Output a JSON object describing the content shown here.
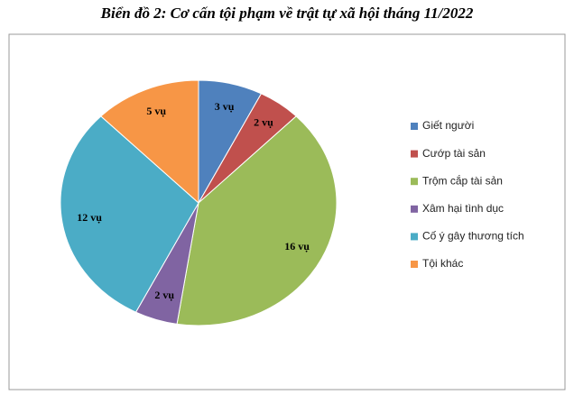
{
  "chart_data": {
    "type": "pie",
    "title": "Biển đồ 2: Cơ cấn tội phạm về trật tự xã hội tháng 11/2022",
    "categories": [
      "Giết người",
      "Cướp tài sản",
      "Trộm cắp tài sản",
      "Xâm hại tình dục",
      "Cố ý gây thương tích",
      "Tội khác"
    ],
    "values": [
      3,
      2,
      16,
      2,
      12,
      5
    ],
    "value_labels": [
      "3 vụ",
      "2 vụ",
      "16 vụ",
      "2 vụ",
      "12 vụ",
      "5 vụ"
    ],
    "colors": [
      "#4f81bd",
      "#c0504d",
      "#9bbb59",
      "#8064a2",
      "#4bacc6",
      "#f79646"
    ],
    "legend": "right"
  }
}
